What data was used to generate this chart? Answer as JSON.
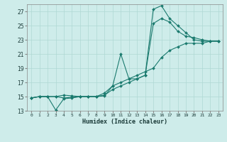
{
  "title": "",
  "xlabel": "Humidex (Indice chaleur)",
  "background_color": "#ceecea",
  "grid_color": "#afd8d4",
  "line_color": "#1a7a6e",
  "xlim": [
    -0.5,
    23.5
  ],
  "ylim": [
    13,
    28
  ],
  "yticks": [
    13,
    15,
    17,
    19,
    21,
    23,
    25,
    27
  ],
  "xticks": [
    0,
    1,
    2,
    3,
    4,
    5,
    6,
    7,
    8,
    9,
    10,
    11,
    12,
    13,
    14,
    15,
    16,
    17,
    18,
    19,
    20,
    21,
    22,
    23
  ],
  "series": [
    {
      "x": [
        0,
        1,
        2,
        3,
        4,
        5,
        6,
        7,
        8,
        9,
        10,
        11,
        12,
        13,
        14,
        15,
        16,
        17,
        18,
        19,
        20,
        21,
        22,
        23
      ],
      "y": [
        14.8,
        15.0,
        15.0,
        15.0,
        15.2,
        15.1,
        15.0,
        15.0,
        15.0,
        15.1,
        16.5,
        21.0,
        17.5,
        17.5,
        18.0,
        27.3,
        27.8,
        26.0,
        25.0,
        24.0,
        23.0,
        22.8,
        22.8,
        22.8
      ]
    },
    {
      "x": [
        0,
        1,
        2,
        3,
        4,
        5,
        6,
        7,
        8,
        9,
        10,
        11,
        12,
        13,
        14,
        15,
        16,
        17,
        18,
        19,
        20,
        21,
        22,
        23
      ],
      "y": [
        14.8,
        15.0,
        15.0,
        15.0,
        14.8,
        14.9,
        15.0,
        15.0,
        15.0,
        15.2,
        16.0,
        16.5,
        17.0,
        17.5,
        18.0,
        25.3,
        26.0,
        25.5,
        24.2,
        23.5,
        23.3,
        23.0,
        22.8,
        22.8
      ]
    },
    {
      "x": [
        0,
        1,
        2,
        3,
        4,
        5,
        6,
        7,
        8,
        9,
        10,
        11,
        12,
        13,
        14,
        15,
        16,
        17,
        18,
        19,
        20,
        21,
        22,
        23
      ],
      "y": [
        14.8,
        15.0,
        15.0,
        13.1,
        14.7,
        14.8,
        15.0,
        15.0,
        15.0,
        15.5,
        16.5,
        17.0,
        17.5,
        18.0,
        18.5,
        19.0,
        20.5,
        21.5,
        22.0,
        22.5,
        22.5,
        22.5,
        22.8,
        22.8
      ]
    }
  ]
}
